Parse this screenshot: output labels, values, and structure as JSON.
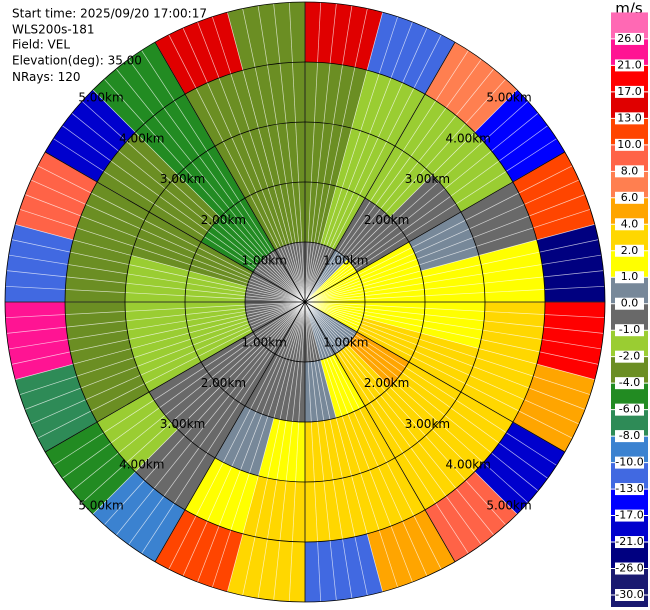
{
  "chart_data": {
    "type": "ppi",
    "info": [
      "Start time: 2025/09/20 17:00:17",
      "WLS200s-181",
      "Field: VEL",
      "Elevation(deg): 35.00"
    ],
    "nrays": {
      "label": "NRays:",
      "value": 120
    },
    "rings": [
      {
        "value": 1,
        "label": "1.00km"
      },
      {
        "value": 2,
        "label": "2.00km"
      },
      {
        "value": 3,
        "label": "3.00km"
      },
      {
        "value": 4,
        "label": "4.00km"
      },
      {
        "value": 5,
        "label": "5.00km"
      }
    ],
    "field": [
      [
        -0.5,
        -0.5,
        0.5,
        1.5,
        1.5,
        1.5,
        1.5,
        1.5,
        0.5,
        0.5,
        0.5,
        -0.5,
        -0.5,
        -0.5,
        -0.5,
        -0.5,
        -0.5,
        -0.5,
        -0.5,
        -0.5,
        -0.5,
        -0.5,
        -0.5,
        -0.5
      ],
      [
        -3,
        -1.5,
        -0.5,
        -0.5,
        1.5,
        1.5,
        1.5,
        3,
        5,
        3,
        1.5,
        0.5,
        -0.5,
        -0.5,
        -0.5,
        -0.5,
        -1.5,
        -1.5,
        -1.5,
        -3,
        -5,
        -5,
        -3,
        -3
      ],
      [
        -3,
        -1.5,
        -1.5,
        -0.5,
        0.5,
        1.5,
        1.5,
        3,
        3,
        3,
        3,
        3,
        1.5,
        0.5,
        -0.5,
        -0.5,
        -1.5,
        -1.5,
        -1.5,
        -3,
        -3,
        -5,
        -3,
        -3
      ],
      [
        -3,
        -1.5,
        -1.5,
        -1.5,
        -0.5,
        1.5,
        3,
        3,
        3,
        3,
        3,
        3,
        3,
        1.5,
        -0.5,
        -1.5,
        -3,
        -3,
        -3,
        -3,
        -3,
        -5,
        -3,
        -3
      ],
      [
        15,
        -11,
        7,
        -15,
        11,
        -23,
        19,
        5,
        -19,
        9,
        5,
        -11,
        3,
        12,
        -9,
        -5,
        -7,
        23,
        -12,
        9,
        -19,
        -5,
        15,
        -3
      ]
    ],
    "colorbar": {
      "title": "m/s",
      "ticks": [
        {
          "value": -30,
          "label": "-30.0"
        },
        {
          "value": -26,
          "label": "-26.0"
        },
        {
          "value": -21,
          "label": "-21.0"
        },
        {
          "value": -17,
          "label": "-17.0"
        },
        {
          "value": -13,
          "label": "-13.0"
        },
        {
          "value": -10,
          "label": "-10.0"
        },
        {
          "value": -8,
          "label": "-8.0"
        },
        {
          "value": -6,
          "label": "-6.0"
        },
        {
          "value": -4,
          "label": "-4.0"
        },
        {
          "value": -2,
          "label": "-2.0"
        },
        {
          "value": -1,
          "label": "-1.0"
        },
        {
          "value": 0,
          "label": "0.0"
        },
        {
          "value": 1,
          "label": "1.0"
        },
        {
          "value": 2,
          "label": "2.0"
        },
        {
          "value": 4,
          "label": "4.0"
        },
        {
          "value": 6,
          "label": "6.0"
        },
        {
          "value": 8,
          "label": "8.0"
        },
        {
          "value": 10,
          "label": "10.0"
        },
        {
          "value": 13,
          "label": "13.0"
        },
        {
          "value": 17,
          "label": "17.0"
        },
        {
          "value": 21,
          "label": "21.0"
        },
        {
          "value": 26,
          "label": "26.0"
        }
      ],
      "colors": [
        "#191970",
        "#191970",
        "#000080",
        "#0000cd",
        "#0000ff",
        "#4169e1",
        "#3b82d0",
        "#2e8b57",
        "#228b22",
        "#6b8e23",
        "#9acd32",
        "#696969",
        "#778899",
        "#ffff00",
        "#ffd700",
        "#ffa500",
        "#ff7f50",
        "#ff6347",
        "#ff4500",
        "#e00000",
        "#ff0000",
        "#ff1493",
        "#ff69b4"
      ]
    }
  }
}
